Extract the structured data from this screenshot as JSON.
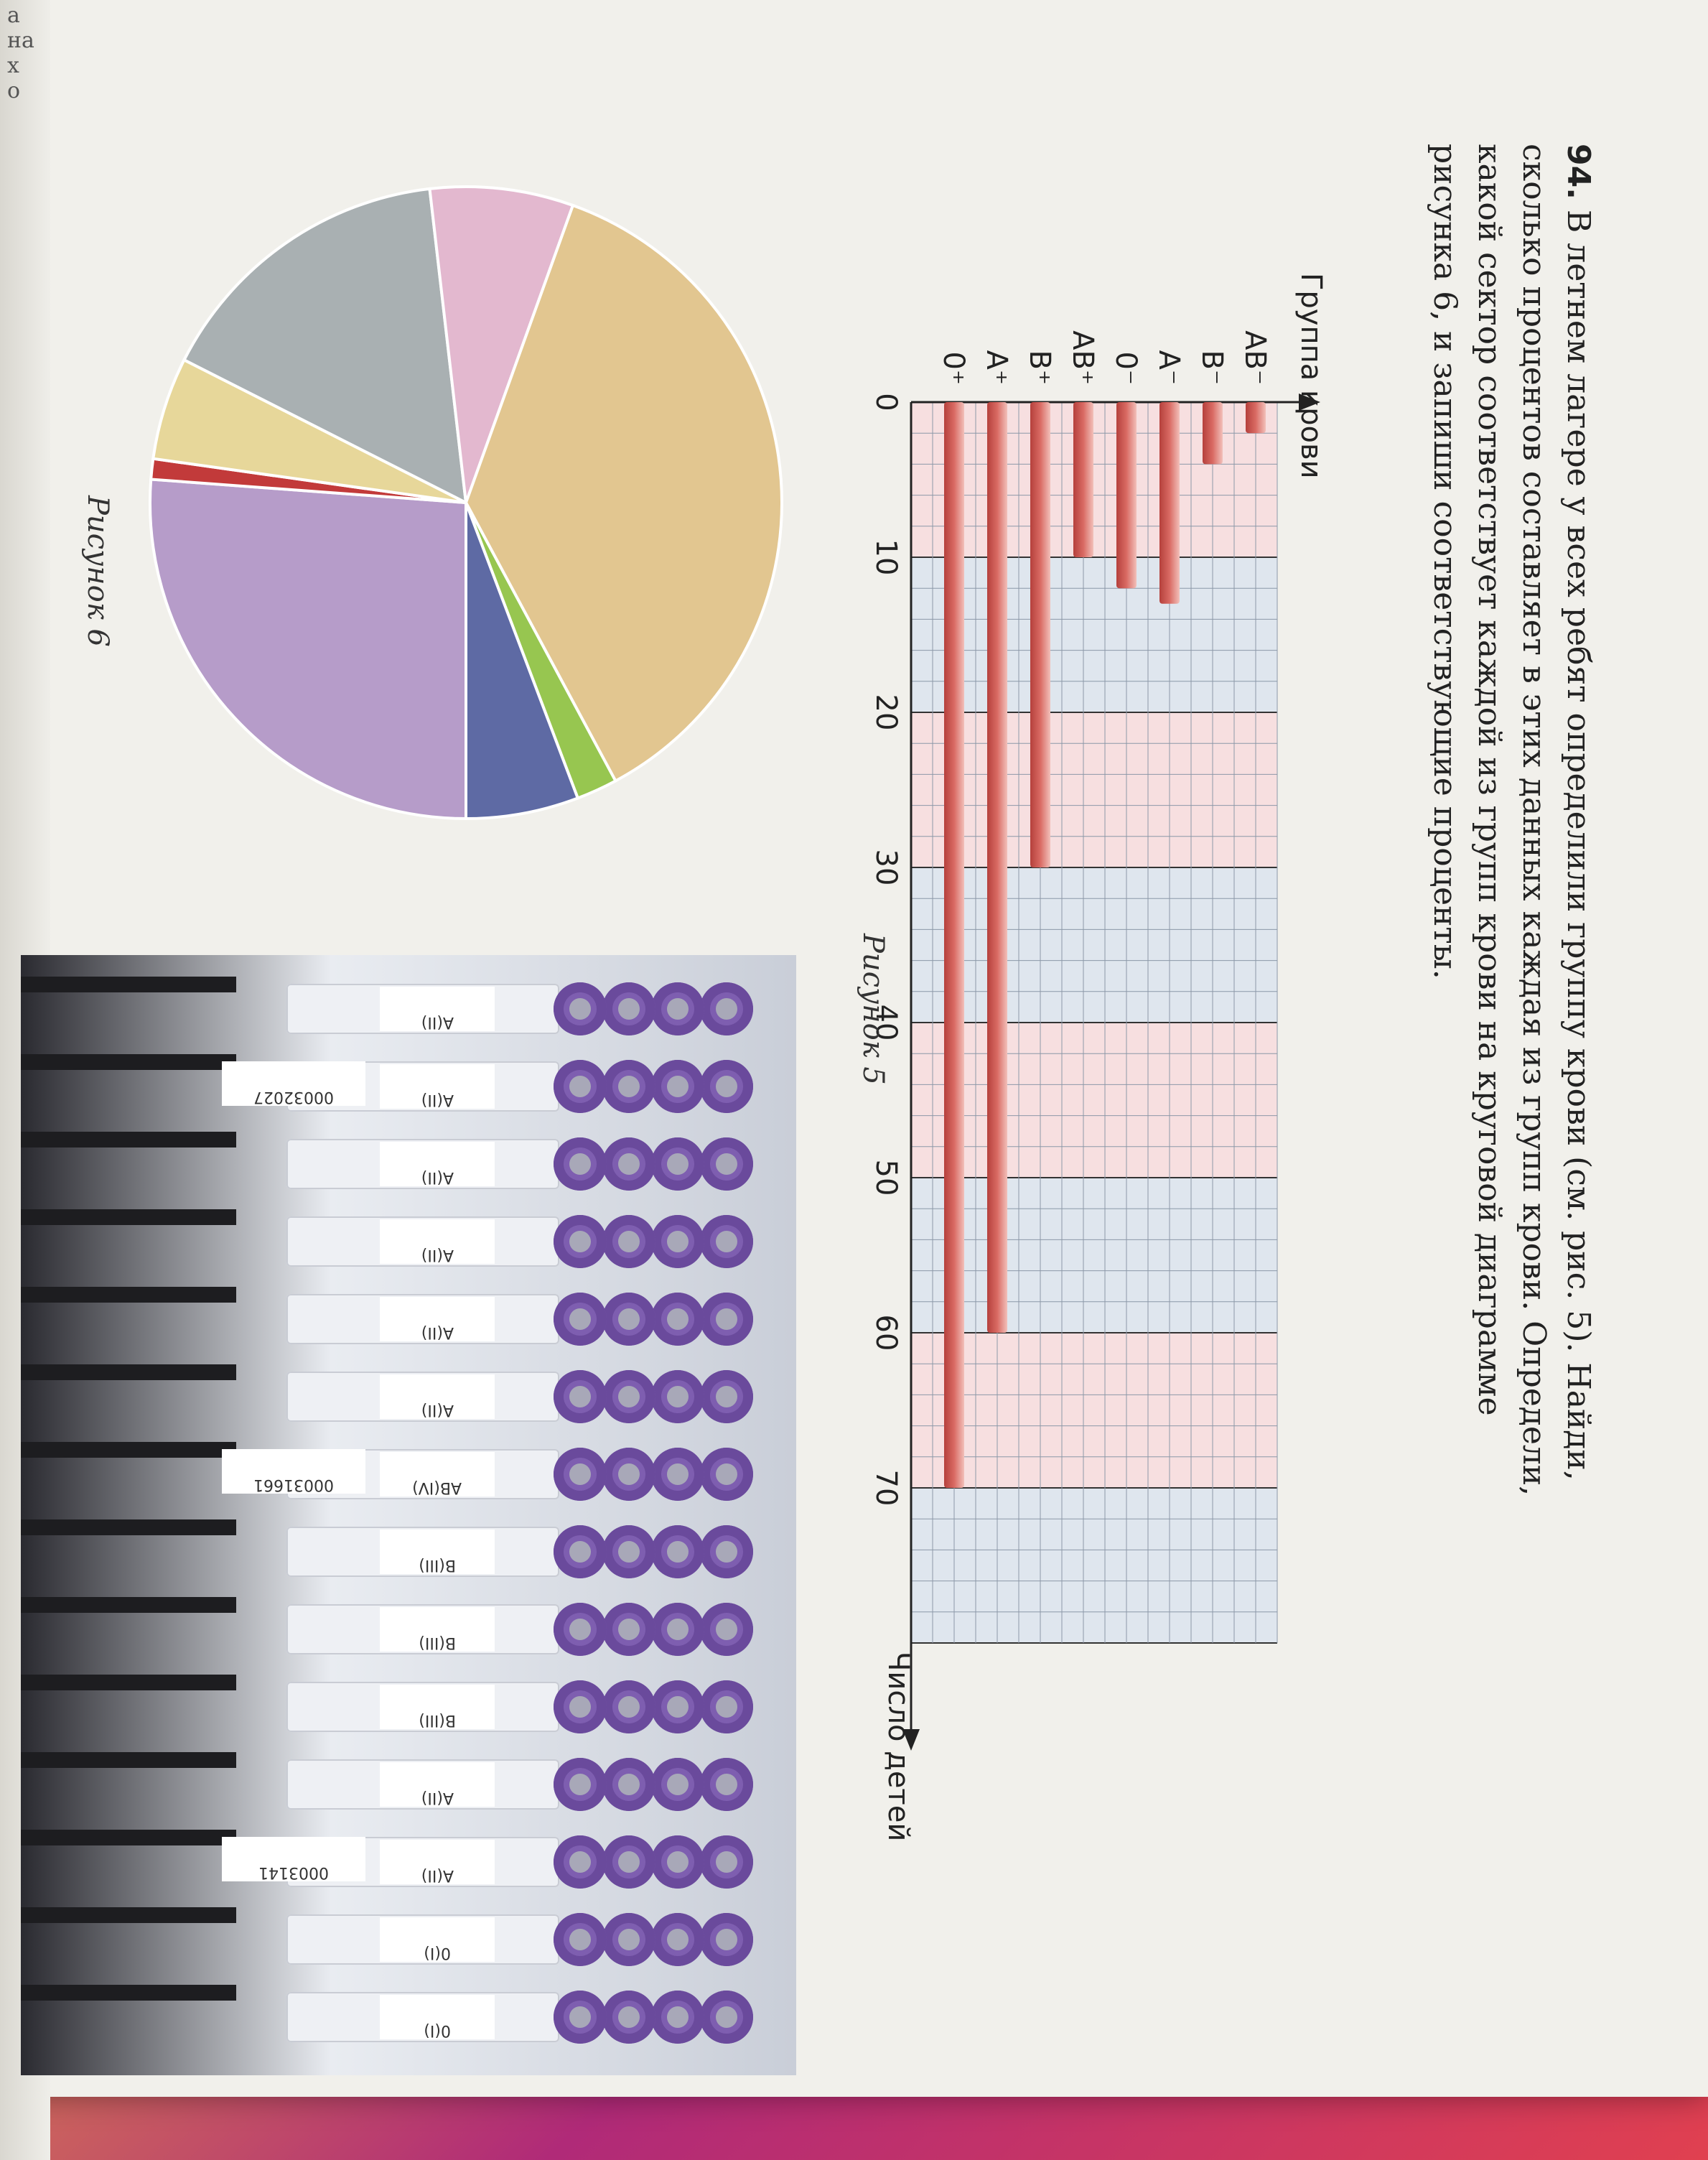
{
  "side_edge": {
    "text": "а\nна\nх\nо"
  },
  "problem": {
    "number": "94.",
    "text": "В летнем лагере у всех ребят определили группу крови (см. рис. 5). Найди, сколько процентов составляет в этих данных каждая из групп крови. Определи, какой сектор соответствует каждой из групп крови на круговой диаграмме рисунка 6, и запиши соответствующие проценты."
  },
  "figure5": {
    "caption": "Рисунок 5",
    "ylabel": "Группа крови",
    "xlabel": "Число детей"
  },
  "figure6": {
    "caption": "Рисунок 6"
  },
  "chart_data": [
    {
      "type": "bar",
      "orientation": "horizontal",
      "title": "",
      "ylabel": "Группа крови",
      "xlabel": "Число детей",
      "categories": [
        "AB⁻",
        "B⁻",
        "A⁻",
        "0⁻",
        "AB⁺",
        "B⁺",
        "A⁺",
        "0⁺"
      ],
      "values": [
        2,
        4,
        13,
        12,
        10,
        30,
        60,
        70
      ],
      "xlim": [
        0,
        80
      ],
      "xticks": [
        0,
        10,
        20,
        30,
        40,
        50,
        60,
        70
      ],
      "grid": true,
      "bar_color": "#d96a63"
    },
    {
      "type": "pie",
      "title": "",
      "slices": [
        {
          "value": 25.0,
          "color": "#b69cc9"
        },
        {
          "value": 1.0,
          "color": "#c23a3a"
        },
        {
          "value": 5.0,
          "color": "#e7d79a"
        },
        {
          "value": 15.0,
          "color": "#a9b0b2"
        },
        {
          "value": 7.0,
          "color": "#e3b8cf"
        },
        {
          "value": 35.0,
          "color": "#e2c690"
        },
        {
          "value": 2.0,
          "color": "#97c650"
        },
        {
          "value": 5.5,
          "color": "#5e6aa4"
        }
      ]
    }
  ],
  "photo": {
    "labels": [
      "A(II)",
      "A(II)",
      "A(II)",
      "A(II)",
      "A(II)",
      "A(II)",
      "AB(IV)",
      "B(III)",
      "B(III)",
      "B(III)",
      "A(II)",
      "A(II)",
      "0(I)",
      "0(I)"
    ],
    "codes": [
      "00032027",
      "00031661",
      "0003141"
    ]
  }
}
